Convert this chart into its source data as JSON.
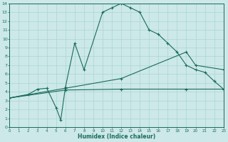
{
  "xlabel": "Humidex (Indice chaleur)",
  "bg_color": "#cce8e8",
  "line_color": "#1a6b5a",
  "grid_color": "#aad4d4",
  "xlim": [
    0,
    23
  ],
  "ylim": [
    0,
    14
  ],
  "xticks": [
    0,
    1,
    2,
    3,
    4,
    5,
    6,
    7,
    8,
    9,
    10,
    11,
    12,
    13,
    14,
    15,
    16,
    17,
    18,
    19,
    20,
    21,
    22,
    23
  ],
  "yticks": [
    0,
    1,
    2,
    3,
    4,
    5,
    6,
    7,
    8,
    9,
    10,
    11,
    12,
    13,
    14
  ],
  "curve1_x": [
    0,
    2,
    3,
    4,
    5,
    5.5,
    6,
    7,
    8,
    10,
    11,
    12,
    13,
    14,
    15,
    16,
    17,
    18,
    19,
    20,
    21,
    22,
    23
  ],
  "curve1_y": [
    3.3,
    3.7,
    4.3,
    4.4,
    2.2,
    0.8,
    4.5,
    9.5,
    6.5,
    13.0,
    13.5,
    14.0,
    13.5,
    13.0,
    11.0,
    10.5,
    9.5,
    8.5,
    7.0,
    6.5,
    6.2,
    5.2,
    4.3
  ],
  "curve2_x": [
    0,
    6,
    12,
    19,
    23
  ],
  "curve2_y": [
    3.3,
    4.2,
    4.3,
    4.3,
    4.3
  ],
  "curve3_x": [
    0,
    6,
    12,
    19,
    20,
    23
  ],
  "curve3_y": [
    3.3,
    4.4,
    5.5,
    8.5,
    7.0,
    6.5
  ]
}
